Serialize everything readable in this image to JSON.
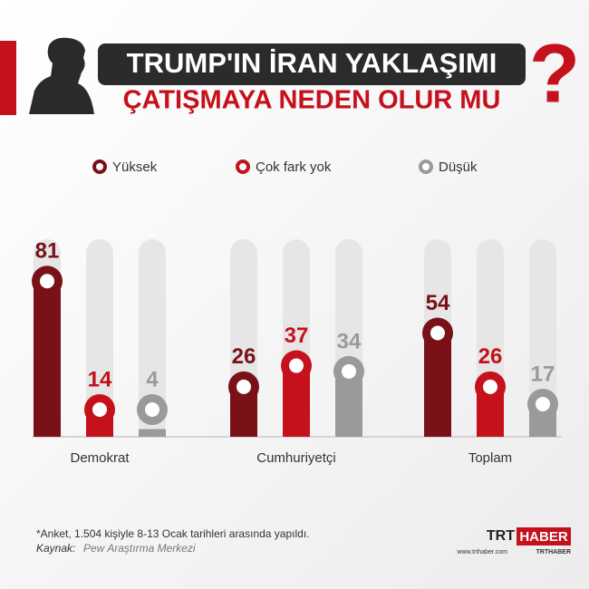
{
  "chart_data": {
    "type": "bar",
    "title_lines": [
      "TRUMP'IN İRAN YAKLAŞIMI",
      "ÇATIŞMAYA NEDEN OLUR MU"
    ],
    "categories": [
      "Demokrat",
      "Cumhuriyetçi",
      "Toplam"
    ],
    "series": [
      {
        "name": "Yüksek",
        "color": "#7a1119",
        "values": [
          81,
          26,
          54
        ]
      },
      {
        "name": "Çok fark yok",
        "color": "#c4111b",
        "values": [
          14,
          37,
          26
        ]
      },
      {
        "name": "Düşük",
        "color": "#9a9a9a",
        "values": [
          4,
          34,
          17
        ]
      }
    ],
    "ylim": [
      0,
      100
    ],
    "note": "*Anket, 1.504 kişiyle 8-13 Ocak tarihleri arasında yapıldı.",
    "source_label": "Kaynak:",
    "source": "Pew Araştırma Merkezi",
    "brand": {
      "trt": "TRT",
      "haber": "HABER",
      "website": "www.trthaber.com",
      "handle": "TRTHABER"
    }
  }
}
